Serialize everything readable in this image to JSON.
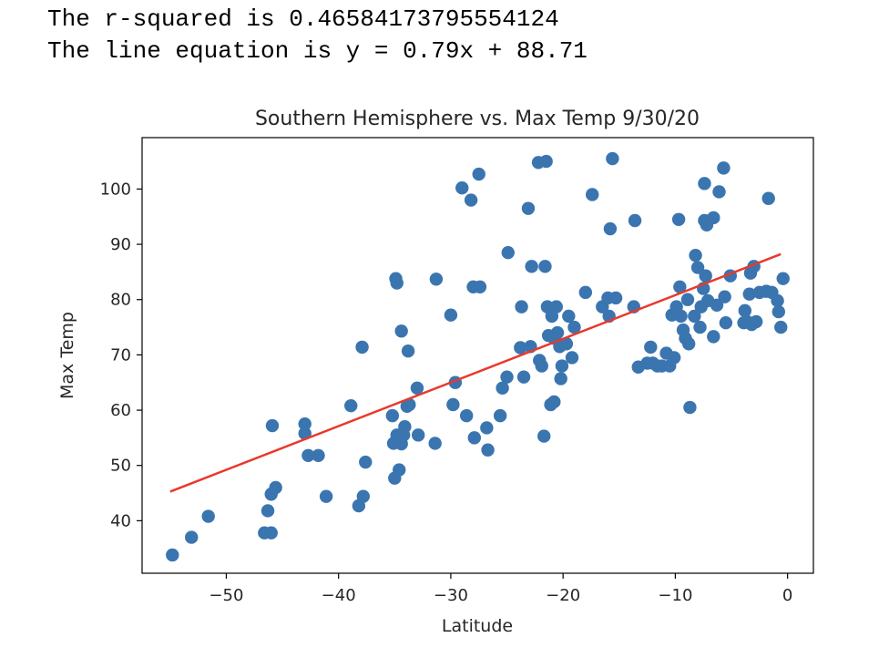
{
  "output": {
    "r_squared_line": "The r-squared is 0.46584173795554124",
    "equation_line": "The line equation is y = 0.79x + 88.71"
  },
  "chart_data": {
    "type": "scatter",
    "title": "Southern Hemisphere vs. Max Temp 9/30/20",
    "xlabel": "Latitude",
    "ylabel": "Max Temp",
    "xlim": [
      -57.5,
      2.3
    ],
    "ylim": [
      30.5,
      109.3
    ],
    "xticks": [
      -50,
      -40,
      -30,
      -20,
      -10,
      0
    ],
    "xtick_labels": [
      "−50",
      "−40",
      "−30",
      "−20",
      "−10",
      "0"
    ],
    "yticks": [
      40,
      50,
      60,
      70,
      80,
      90,
      100
    ],
    "ytick_labels": [
      "40",
      "50",
      "60",
      "70",
      "80",
      "90",
      "100"
    ],
    "grid": false,
    "point_color": "#3a75b0",
    "line_color": "#e8392b",
    "regression": {
      "slope": 0.79,
      "intercept": 88.71,
      "x_range": [
        -55,
        -0.6
      ]
    },
    "points": [
      [
        -54.8,
        33.8
      ],
      [
        -53.1,
        37.0
      ],
      [
        -51.6,
        40.8
      ],
      [
        -46.6,
        37.8
      ],
      [
        -46.0,
        37.8
      ],
      [
        -46.3,
        41.8
      ],
      [
        -46.0,
        44.8
      ],
      [
        -45.6,
        46.0
      ],
      [
        -45.9,
        57.2
      ],
      [
        -43.0,
        57.5
      ],
      [
        -43.0,
        55.8
      ],
      [
        -42.7,
        51.8
      ],
      [
        -41.8,
        51.8
      ],
      [
        -41.1,
        44.4
      ],
      [
        -38.9,
        60.8
      ],
      [
        -38.2,
        42.7
      ],
      [
        -37.8,
        44.4
      ],
      [
        -37.6,
        50.6
      ],
      [
        -37.9,
        71.4
      ],
      [
        -35.2,
        59.0
      ],
      [
        -35.1,
        54.0
      ],
      [
        -35.0,
        47.7
      ],
      [
        -34.6,
        49.2
      ],
      [
        -34.8,
        55.5
      ],
      [
        -34.4,
        53.9
      ],
      [
        -34.2,
        55.5
      ],
      [
        -34.1,
        57.0
      ],
      [
        -33.9,
        60.7
      ],
      [
        -33.7,
        61.0
      ],
      [
        -33.8,
        70.7
      ],
      [
        -33.0,
        64.0
      ],
      [
        -32.9,
        55.5
      ],
      [
        -34.9,
        83.8
      ],
      [
        -34.8,
        83.0
      ],
      [
        -34.4,
        74.3
      ],
      [
        -31.4,
        54.0
      ],
      [
        -31.3,
        83.7
      ],
      [
        -30.0,
        77.2
      ],
      [
        -29.8,
        61.0
      ],
      [
        -29.6,
        65.0
      ],
      [
        -28.6,
        59.0
      ],
      [
        -28.2,
        98.0
      ],
      [
        -29.0,
        100.2
      ],
      [
        -28.0,
        82.3
      ],
      [
        -27.4,
        82.3
      ],
      [
        -27.5,
        102.7
      ],
      [
        -27.9,
        55.0
      ],
      [
        -26.7,
        52.8
      ],
      [
        -26.8,
        56.8
      ],
      [
        -25.6,
        59.0
      ],
      [
        -25.4,
        64.0
      ],
      [
        -25.0,
        66.0
      ],
      [
        -24.9,
        88.5
      ],
      [
        -23.8,
        71.3
      ],
      [
        -23.7,
        78.7
      ],
      [
        -23.5,
        66.0
      ],
      [
        -23.1,
        96.5
      ],
      [
        -22.8,
        86.0
      ],
      [
        -22.9,
        71.5
      ],
      [
        -22.1,
        69.0
      ],
      [
        -21.9,
        68.0
      ],
      [
        -21.7,
        55.3
      ],
      [
        -22.2,
        104.8
      ],
      [
        -21.5,
        105.0
      ],
      [
        -21.6,
        86.0
      ],
      [
        -21.4,
        78.7
      ],
      [
        -21.3,
        73.5
      ],
      [
        -21.0,
        77.0
      ],
      [
        -20.8,
        73.0
      ],
      [
        -21.1,
        61.0
      ],
      [
        -20.8,
        61.5
      ],
      [
        -20.6,
        78.7
      ],
      [
        -20.5,
        74.0
      ],
      [
        -20.3,
        71.5
      ],
      [
        -20.2,
        65.7
      ],
      [
        -20.1,
        68.0
      ],
      [
        -19.7,
        72.0
      ],
      [
        -19.5,
        77.0
      ],
      [
        -19.2,
        69.5
      ],
      [
        -19.0,
        75.0
      ],
      [
        -18.0,
        81.3
      ],
      [
        -17.4,
        99.0
      ],
      [
        -16.5,
        78.7
      ],
      [
        -16.0,
        80.3
      ],
      [
        -15.9,
        77.0
      ],
      [
        -15.8,
        92.8
      ],
      [
        -15.6,
        105.5
      ],
      [
        -15.3,
        80.3
      ],
      [
        -13.7,
        78.7
      ],
      [
        -13.6,
        94.3
      ],
      [
        -13.3,
        67.8
      ],
      [
        -12.5,
        68.5
      ],
      [
        -12.2,
        71.4
      ],
      [
        -12.0,
        68.5
      ],
      [
        -11.6,
        68.0
      ],
      [
        -11.2,
        68.0
      ],
      [
        -10.8,
        70.3
      ],
      [
        -10.5,
        68.0
      ],
      [
        -10.1,
        69.5
      ],
      [
        -10.3,
        77.2
      ],
      [
        -9.9,
        78.7
      ],
      [
        -9.7,
        94.5
      ],
      [
        -9.6,
        82.3
      ],
      [
        -9.5,
        77.0
      ],
      [
        -9.3,
        74.5
      ],
      [
        -9.1,
        73.0
      ],
      [
        -8.9,
        80.0
      ],
      [
        -8.8,
        72.0
      ],
      [
        -8.7,
        60.5
      ],
      [
        -8.3,
        77.0
      ],
      [
        -8.2,
        88.0
      ],
      [
        -8.0,
        85.8
      ],
      [
        -7.8,
        75.0
      ],
      [
        -7.7,
        78.7
      ],
      [
        -7.5,
        82.0
      ],
      [
        -7.4,
        94.3
      ],
      [
        -7.4,
        101.0
      ],
      [
        -7.3,
        84.3
      ],
      [
        -7.2,
        93.5
      ],
      [
        -7.1,
        79.8
      ],
      [
        -6.6,
        94.8
      ],
      [
        -6.6,
        73.3
      ],
      [
        -6.3,
        79.0
      ],
      [
        -6.1,
        99.5
      ],
      [
        -5.7,
        103.8
      ],
      [
        -5.6,
        80.5
      ],
      [
        -5.5,
        75.8
      ],
      [
        -5.1,
        84.3
      ],
      [
        -3.9,
        75.8
      ],
      [
        -3.8,
        78.0
      ],
      [
        -3.6,
        76.0
      ],
      [
        -3.4,
        81.0
      ],
      [
        -3.3,
        84.8
      ],
      [
        -3.2,
        75.5
      ],
      [
        -3.0,
        86.0
      ],
      [
        -2.8,
        76.0
      ],
      [
        -2.5,
        81.3
      ],
      [
        -1.9,
        81.5
      ],
      [
        -1.7,
        98.3
      ],
      [
        -1.4,
        81.3
      ],
      [
        -0.9,
        79.8
      ],
      [
        -0.8,
        77.8
      ],
      [
        -0.6,
        75.0
      ],
      [
        -0.4,
        83.8
      ]
    ]
  }
}
